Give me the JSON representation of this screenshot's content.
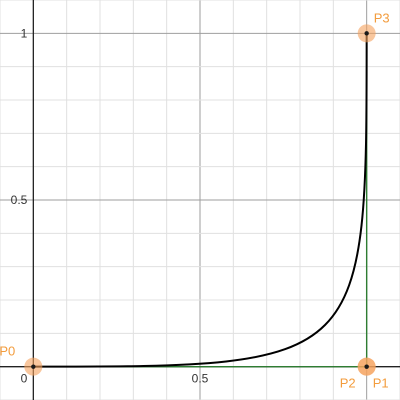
{
  "chart_data": {
    "type": "line",
    "title": "",
    "xlabel": "",
    "ylabel": "",
    "xlim": [
      -0.1,
      1.1
    ],
    "ylim": [
      -0.1,
      1.1
    ],
    "grid": true,
    "minor_grid_step": 0.1,
    "major_grid_step": 0.5,
    "x_ticks": [
      {
        "value": 0,
        "label": "0"
      },
      {
        "value": 0.5,
        "label": "0.5"
      }
    ],
    "y_ticks": [
      {
        "value": 0.5,
        "label": "0.5"
      },
      {
        "value": 1,
        "label": "1"
      }
    ],
    "curve": {
      "kind": "cubic-bezier",
      "color": "#000000",
      "control_points": [
        [
          0,
          0
        ],
        [
          1,
          0
        ],
        [
          1,
          0
        ],
        [
          1,
          1
        ]
      ]
    },
    "control_polygon_color": "#2e7d32",
    "control_points": [
      {
        "name": "P0",
        "x": 0,
        "y": 0,
        "label_side": "above-left"
      },
      {
        "name": "P1",
        "x": 1,
        "y": 0,
        "label_side": "below-right"
      },
      {
        "name": "P2",
        "x": 1,
        "y": 0,
        "label_side": "below-left"
      },
      {
        "name": "P3",
        "x": 1,
        "y": 1,
        "label_side": "above-right"
      }
    ],
    "point_color": "#f5a25d",
    "label_color": "#f39c3d"
  }
}
